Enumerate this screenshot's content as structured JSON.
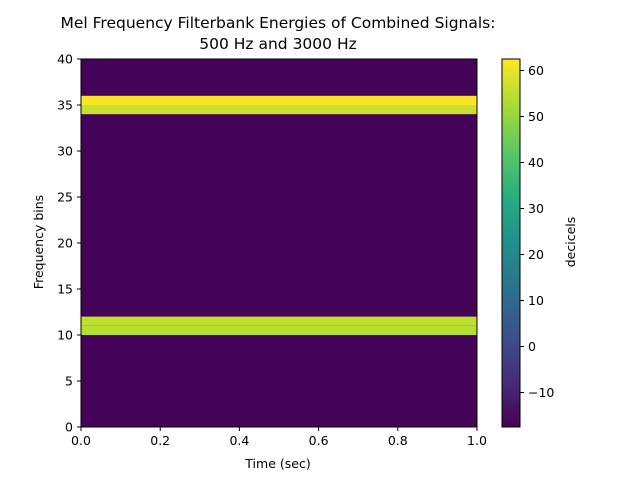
{
  "chart_data": {
    "type": "heatmap",
    "title_lines": [
      "Mel Frequency Filterbank Energies of Combined Signals:",
      "500 Hz and 3000 Hz"
    ],
    "xlabel": "Time (sec)",
    "ylabel": "Frequency bins",
    "xlim": [
      0,
      1.0
    ],
    "ylim": [
      0,
      40
    ],
    "x_ticks": [
      0.0,
      0.2,
      0.4,
      0.6,
      0.8,
      1.0
    ],
    "x_tick_labels": [
      "0.0",
      "0.2",
      "0.4",
      "0.6",
      "0.8",
      "1.0"
    ],
    "y_ticks": [
      0,
      5,
      10,
      15,
      20,
      25,
      30,
      35,
      40
    ],
    "y_tick_labels": [
      "0",
      "5",
      "10",
      "15",
      "20",
      "25",
      "30",
      "35",
      "40"
    ],
    "background_value": -17,
    "bands": [
      {
        "bin_start": 10,
        "bin_end": 11,
        "value": 54
      },
      {
        "bin_start": 11,
        "bin_end": 12,
        "value": 55
      },
      {
        "bin_start": 34,
        "bin_end": 35,
        "value": 56
      },
      {
        "bin_start": 35,
        "bin_end": 36,
        "value": 62
      }
    ],
    "colorbar": {
      "label": "decicels",
      "colormap": "viridis",
      "vmin": -17.5,
      "vmax": 62.5,
      "ticks": [
        -10,
        0,
        10,
        20,
        30,
        40,
        50,
        60
      ],
      "tick_labels": [
        "−10",
        "0",
        "10",
        "20",
        "30",
        "40",
        "50",
        "60"
      ]
    },
    "grid": false
  }
}
